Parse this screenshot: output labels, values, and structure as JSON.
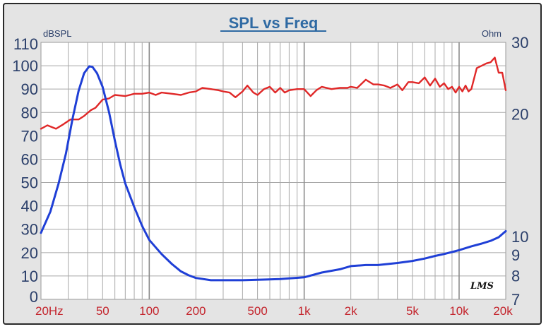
{
  "colors": {
    "spl": "#e02828",
    "impedance": "#1f3fd6",
    "axis_text": "#2b3f6a",
    "freq_text": "#c4262e",
    "title": "#2f6aa3",
    "background": "#e4e4e4",
    "plot_bg": "#ffffff",
    "grid": "#a8a8a8"
  },
  "logo_text": "LMS",
  "chart_data": {
    "type": "line",
    "title": "SPL vs Freq",
    "xscale": "log",
    "xlim": [
      20,
      20000
    ],
    "ylim": [
      0,
      110
    ],
    "y2lim": [
      7,
      30
    ],
    "left_unit": "dBSPL",
    "right_unit": "Ohm",
    "yticks": [
      "110",
      "100",
      "90",
      "80",
      "70",
      "60",
      "50",
      "40",
      "30",
      "20",
      "10",
      "0"
    ],
    "y2ticks": [
      {
        "label": "30",
        "value": 30
      },
      {
        "label": "20",
        "value": 20
      },
      {
        "label": "10",
        "value": 10
      },
      {
        "label": "9",
        "value": 9
      },
      {
        "label": "8",
        "value": 8
      },
      {
        "label": "7",
        "value": 7
      }
    ],
    "xticks": [
      {
        "label": "20Hz",
        "value": 20
      },
      {
        "label": "50",
        "value": 50
      },
      {
        "label": "100",
        "value": 100
      },
      {
        "label": "200",
        "value": 200
      },
      {
        "label": "500",
        "value": 500
      },
      {
        "label": "1k",
        "value": 1000
      },
      {
        "label": "2k",
        "value": 2000
      },
      {
        "label": "5k",
        "value": 5000
      },
      {
        "label": "10k",
        "value": 10000
      },
      {
        "label": "20k",
        "value": 20000
      }
    ],
    "grid": true,
    "series": [
      {
        "axis": "left",
        "x": [
          20,
          22,
          25,
          28,
          31,
          35,
          38,
          42,
          45,
          50,
          55,
          60,
          70,
          80,
          90,
          100,
          110,
          120,
          140,
          160,
          180,
          200,
          220,
          250,
          280,
          300,
          330,
          360,
          400,
          430,
          470,
          500,
          550,
          600,
          650,
          700,
          750,
          800,
          900,
          1000,
          1100,
          1200,
          1300,
          1500,
          1700,
          1900,
          2000,
          2200,
          2500,
          2800,
          3000,
          3300,
          3600,
          4000,
          4300,
          4700,
          5000,
          5500,
          6000,
          6500,
          7000,
          7500,
          8000,
          8500,
          9000,
          9500,
          10000,
          10500,
          11000,
          11500,
          12000,
          13000,
          14000,
          15000,
          16000,
          17000,
          18000,
          19000,
          20000
        ],
        "values": [
          73,
          74.5,
          73,
          75,
          77,
          77,
          78.5,
          81,
          82,
          85.5,
          86,
          87.5,
          87,
          88,
          88,
          88.5,
          87.5,
          88.5,
          88,
          87.5,
          88.5,
          89,
          90.5,
          90,
          89.5,
          89,
          88.5,
          86.5,
          89,
          91.5,
          88.5,
          87.5,
          90,
          91,
          88.5,
          90.5,
          88.5,
          89.5,
          90,
          90,
          87,
          89.5,
          91,
          90,
          90.5,
          90.5,
          91,
          90.5,
          94,
          92,
          92,
          91.5,
          90.5,
          92,
          89.5,
          93,
          93,
          92.5,
          95,
          91.5,
          94.5,
          91,
          92.5,
          90,
          91,
          88.5,
          91,
          89,
          91.5,
          89,
          90,
          99,
          100,
          101,
          101.5,
          103.5,
          97,
          97,
          89.5
        ]
      },
      {
        "axis": "right",
        "x": [
          20,
          23,
          26,
          29,
          32,
          35,
          38,
          41,
          43,
          46,
          50,
          55,
          60,
          65,
          70,
          80,
          90,
          100,
          110,
          120,
          140,
          160,
          180,
          200,
          250,
          300,
          400,
          500,
          700,
          1000,
          1300,
          1700,
          2000,
          2500,
          3000,
          4000,
          5000,
          6000,
          7000,
          8000,
          9000,
          10000,
          12000,
          14000,
          16000,
          18000,
          20000
        ],
        "values": [
          10.2,
          11.5,
          13.5,
          16,
          19.5,
          22.8,
          25.2,
          26.2,
          26.1,
          25.2,
          23.3,
          20.2,
          17.2,
          15,
          13.5,
          11.8,
          10.6,
          9.8,
          9.4,
          9.05,
          8.55,
          8.2,
          8.02,
          7.9,
          7.8,
          7.8,
          7.8,
          7.82,
          7.85,
          7.93,
          8.15,
          8.3,
          8.45,
          8.5,
          8.5,
          8.6,
          8.7,
          8.82,
          8.95,
          9.05,
          9.15,
          9.25,
          9.45,
          9.6,
          9.75,
          9.95,
          10.3
        ]
      }
    ]
  }
}
